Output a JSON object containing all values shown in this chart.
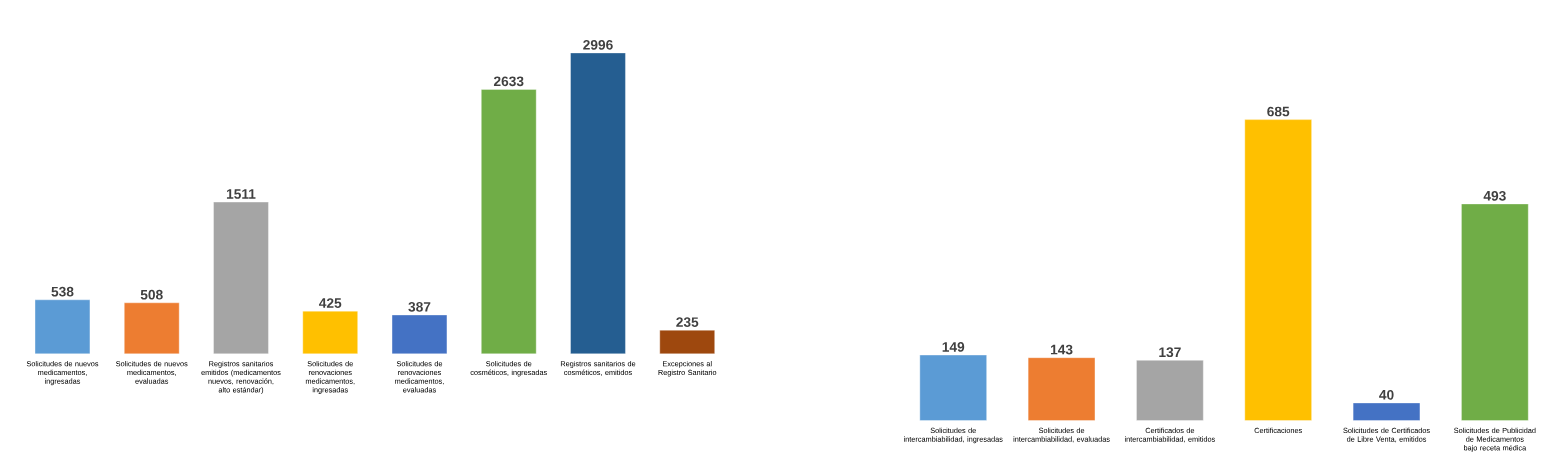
{
  "chart_data": [
    {
      "type": "bar",
      "data_labels": true,
      "categories": [
        "Solicitudes de nuevos medicamentos, ingresadas",
        "Solicitudes de nuevos medicamentos, evaluadas",
        "Registros sanitarios emitidos (medicamentos nuevos, renovación, alto estándar)",
        "Solicitudes de renovaciones medicamentos, ingresadas",
        "Solicitudes de renovaciones medicamentos, evaluadas",
        "Solicitudes de cosméticos, ingresadas",
        "Registros sanitarios de cosméticos, emitidos",
        "Excepciones al Registro Sanitario"
      ],
      "values": [
        538,
        508,
        1511,
        425,
        387,
        2633,
        2996,
        235
      ],
      "colors": [
        "#5b9bd5",
        "#ed7d31",
        "#a5a5a5",
        "#ffc000",
        "#4472c4",
        "#70ad47",
        "#255e91",
        "#9e480e"
      ]
    },
    {
      "type": "bar",
      "data_labels": true,
      "categories": [
        "Solicitudes de intercambiabilidad, ingresadas",
        "Solicitudes de intercambiabilidad, evaluadas",
        "Certificados de intercambiabilidad, emitidos",
        "Certificaciones",
        "Solicitudes de Certificados de Libre Venta, emitidos",
        "Solicitudes de Publicidad de Medicamentos bajo receta médica"
      ],
      "values": [
        149,
        143,
        137,
        685,
        40,
        493
      ],
      "colors": [
        "#5b9bd5",
        "#ed7d31",
        "#a5a5a5",
        "#ffc000",
        "#4472c4",
        "#70ad47"
      ]
    }
  ]
}
